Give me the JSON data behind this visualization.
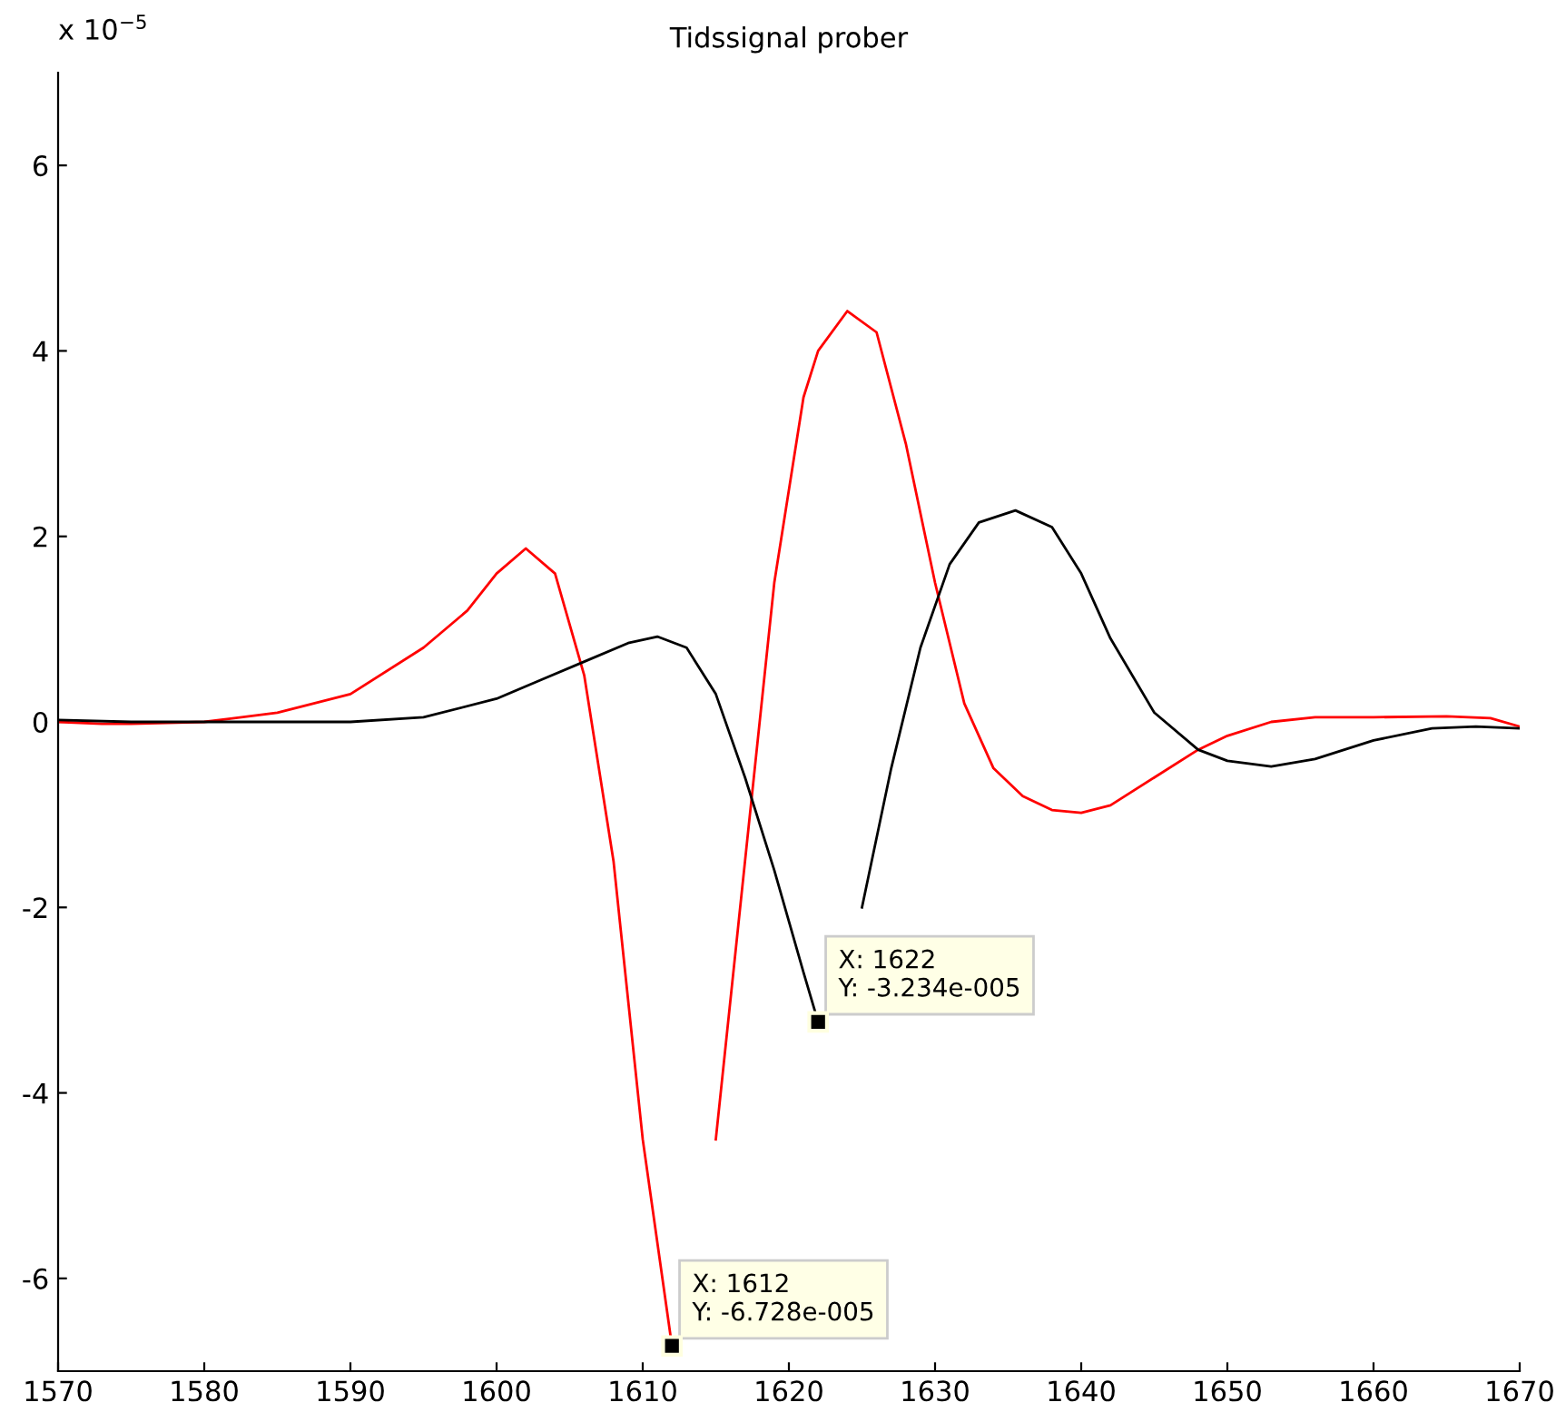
{
  "chart_data": {
    "type": "line",
    "title": "Tidssignal prober",
    "xlim": [
      1570,
      1670
    ],
    "xticks": [
      1570,
      1580,
      1590,
      1600,
      1610,
      1620,
      1630,
      1640,
      1650,
      1660,
      1670
    ],
    "ylim": [
      -7,
      7
    ],
    "yticks": [
      -6,
      -4,
      -2,
      0,
      2,
      4,
      6
    ],
    "grid": false,
    "legend": false,
    "marker": "none",
    "line_style": "solid",
    "series": [
      {
        "color": "#ff0000",
        "x": [
          1570,
          1573,
          1575,
          1580,
          1585,
          1590,
          1595,
          1598,
          1600,
          1602,
          1604,
          1606,
          1608,
          1610,
          1612,
          1613,
          1615,
          1617,
          1619,
          1621,
          1622,
          1624,
          1626,
          1628,
          1630,
          1632,
          1634,
          1636,
          1638,
          1640,
          1642,
          1645,
          1648,
          1650,
          1653,
          1656,
          1660,
          1665,
          1668,
          1670
        ],
        "values": [
          0,
          -0.02,
          -0.02,
          0,
          0.1,
          0.3,
          0.8,
          1.2,
          1.6,
          1.87,
          1.6,
          0.5,
          -1.5,
          -4.5,
          -6.728,
          null,
          -4.5,
          -1.5,
          1.5,
          3.5,
          4.0,
          4.43,
          4.2,
          3.0,
          1.5,
          0.2,
          -0.5,
          -0.8,
          -0.95,
          -0.98,
          -0.9,
          -0.6,
          -0.3,
          -0.15,
          0.0,
          0.05,
          0.05,
          0.06,
          0.04,
          -0.05
        ]
      },
      {
        "color": "#000000",
        "x": [
          1570,
          1575,
          1590,
          1595,
          1600,
          1603,
          1606,
          1609,
          1611,
          1613,
          1615,
          1617,
          1619,
          1621,
          1622,
          1623,
          1625,
          1627,
          1629,
          1631,
          1633,
          1635.5,
          1638,
          1640,
          1642,
          1645,
          1648,
          1650,
          1653,
          1656,
          1660,
          1664,
          1667,
          1670
        ],
        "values": [
          0.02,
          0,
          0,
          0.05,
          0.25,
          0.45,
          0.65,
          0.85,
          0.92,
          0.8,
          0.3,
          -0.6,
          -1.6,
          -2.7,
          -3.234,
          null,
          -2.0,
          -0.5,
          0.8,
          1.7,
          2.15,
          2.28,
          2.1,
          1.6,
          0.9,
          0.1,
          -0.3,
          -0.42,
          -0.48,
          -0.4,
          -0.2,
          -0.07,
          -0.05,
          -0.07
        ]
      }
    ],
    "annotations": [
      "x 10$^{−5}$",
      {
        "text": "X: 1612\nY: -6.728e-005",
        "x": 1612,
        "y": -6.728
      },
      {
        "text": "X: 1622\nY: -3.234e-005",
        "x": 1622,
        "y": -3.234
      }
    ]
  }
}
